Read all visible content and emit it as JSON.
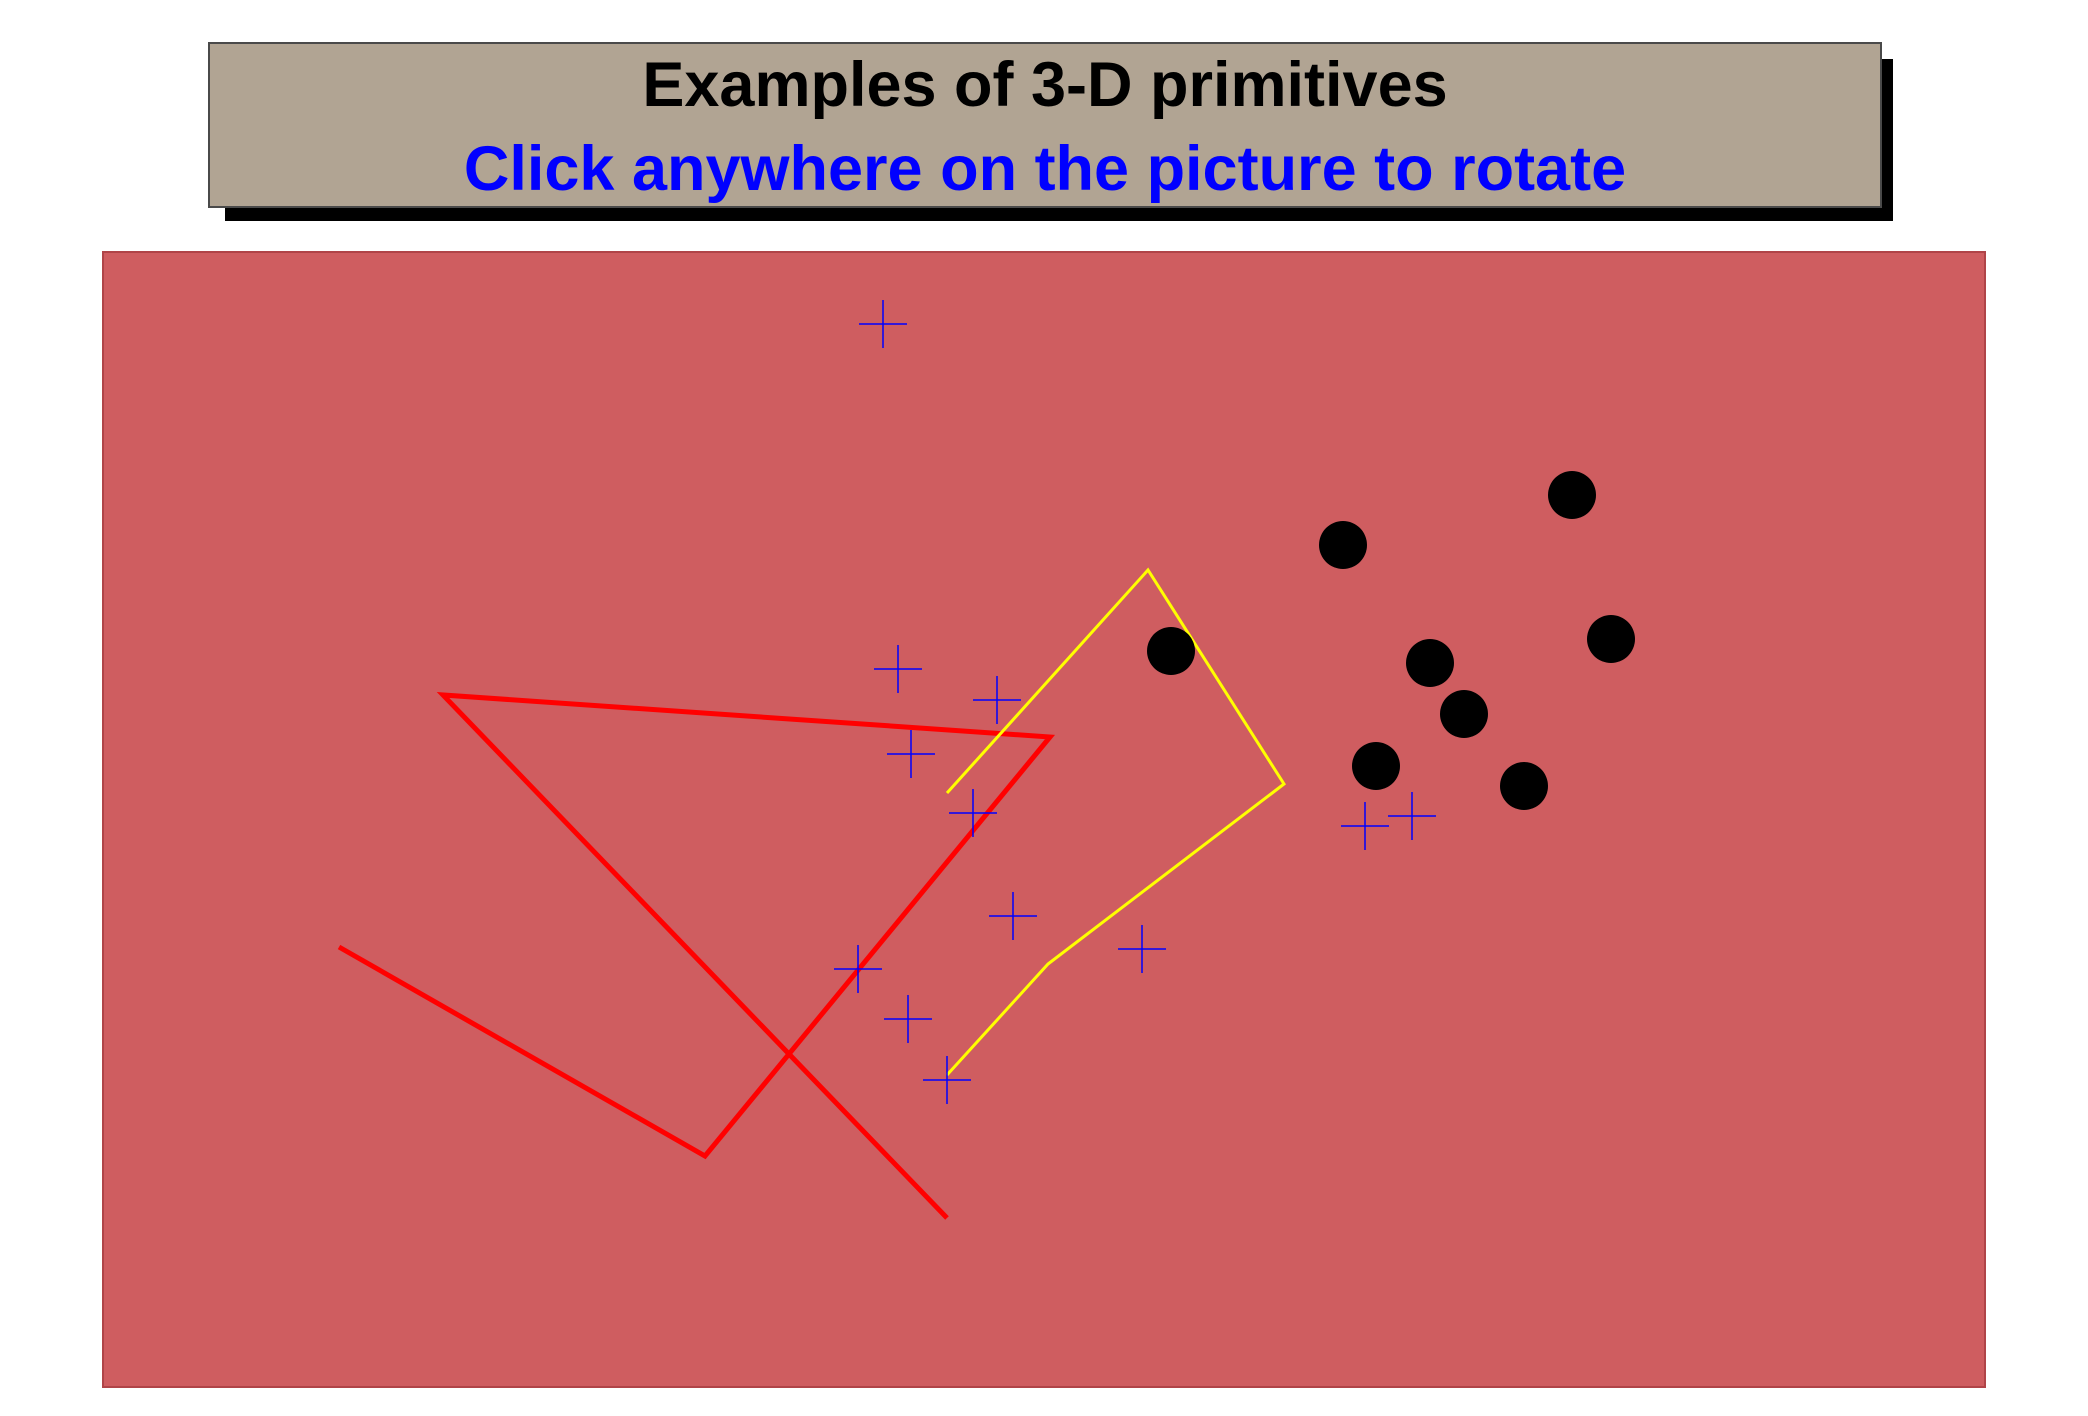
{
  "title": {
    "line1": "Examples of 3-D primitives",
    "line2": "Click anywhere on the picture to rotate"
  },
  "colors": {
    "title_bg": "#b1a493",
    "title_text": "#000000",
    "instruction_text": "#0000ff",
    "canvas_bg": "#cf5d60",
    "red_polyline": "#ff0000",
    "yellow_polyline": "#ffff00",
    "markers": "#0000ff",
    "spheres": "#000000"
  },
  "primitives": {
    "red_polyline_label": "red polyline",
    "yellow_polyline_label": "yellow polyline",
    "marker_label": "blue plus markers",
    "sphere_label": "black dots"
  }
}
